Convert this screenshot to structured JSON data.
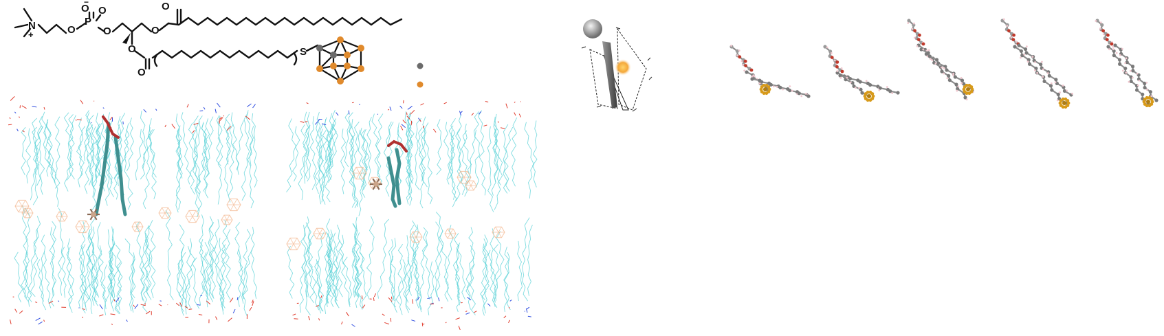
{
  "structure": {
    "atom_labels": {
      "nitrogen": "N",
      "nitrogen_charge": "+",
      "phosphorus": "P",
      "oxygen_phosphate_top": "O",
      "oxygen_phosphate_neg": "O",
      "oxygen_phosphate_negcharge": "−",
      "oxygen_ester_1": "O",
      "oxygen_ester_2": "O",
      "oxygen_sn1": "O",
      "oxygen_sn1_carbonyl": "O",
      "oxygen_sn2": "O",
      "oxygen_sn2_carbonyl": "O",
      "sulfur": "S"
    },
    "legend_dot_colors": [
      "#6b6b6b",
      "#e08a2c"
    ],
    "boron_color": "#e08a2c",
    "carbon_color": "#6b6b6b"
  },
  "colors": {
    "lipid_tail": "#5fd3d8",
    "headgroup_red": "#e03b2c",
    "headgroup_blue": "#2c4be0",
    "carborane_cage": "#f3b48a",
    "highlight_lipid": "#3f8f8f",
    "conformer_carbon": "#7a7a7a",
    "conformer_cage": "#d79a1a"
  }
}
